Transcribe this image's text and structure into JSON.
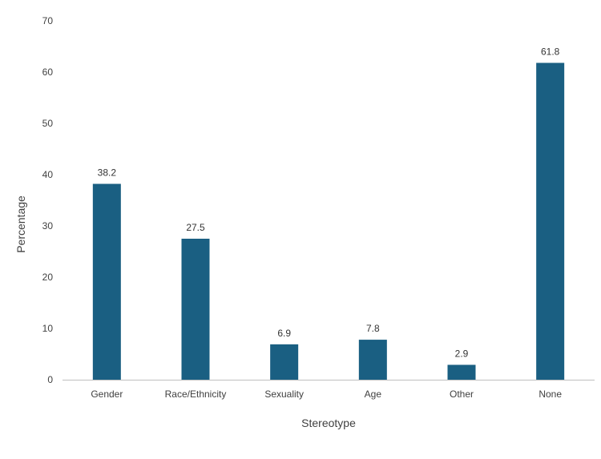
{
  "chart_data": {
    "type": "bar",
    "categories": [
      "Gender",
      "Race/Ethnicity",
      "Sexuality",
      "Age",
      "Other",
      "None"
    ],
    "values": [
      38.2,
      27.5,
      6.9,
      7.8,
      2.9,
      61.8
    ],
    "data_labels": [
      "38.2",
      "27.5",
      "6.9",
      "7.8",
      "2.9",
      "61.8"
    ],
    "title": "",
    "xlabel": "Stereotype",
    "ylabel": "Percentage",
    "ylim": [
      0,
      70
    ],
    "yticks": [
      "0",
      "10",
      "20",
      "30",
      "40",
      "50",
      "60",
      "70"
    ],
    "grid": false,
    "legend": "none",
    "bar_color": "#1a5f82",
    "axis_color": "#bfbfbf"
  }
}
